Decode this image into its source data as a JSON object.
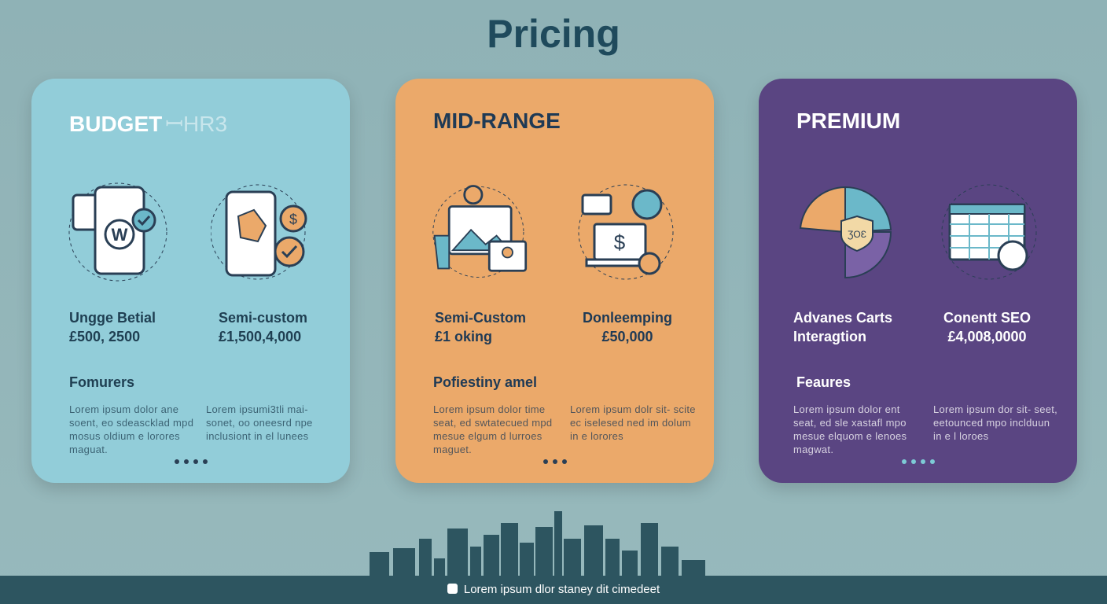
{
  "title": "Pricing",
  "colors": {
    "budget": "#92cdd9",
    "mid": "#eba96a",
    "premium": "#5a4582",
    "footer": "#2d5560"
  },
  "cards": [
    {
      "tier": "BUDGET",
      "tier_ghost": "ꟷHR3",
      "options": [
        {
          "name": "Ungge Betial",
          "price": "£500, 2500",
          "icon": "phone-wordpress-icon"
        },
        {
          "name": "Semi-custom",
          "price": "£1,500,4,000",
          "icon": "phone-dollar-gear-icon"
        }
      ],
      "features_title": "Fomurers",
      "lorem": [
        "Lorem ipsum dolor ane soent, eo sdeascklad mpd mosus oldium e lorores maguat.",
        "Lorem ipsumi3tli mai- sonet, oo oneesrd npe inclusiont in el lunees"
      ],
      "dots": 4
    },
    {
      "tier": "MID-RANGE",
      "options": [
        {
          "name": "Semi-Custom",
          "price": "£1 oking",
          "icon": "browser-gallery-icon"
        },
        {
          "name": "Donleemping",
          "price": "£50,000",
          "icon": "laptop-dollar-icon"
        }
      ],
      "features_title": "Pofiestiny amel",
      "lorem": [
        "Lorem ipsum dolor time seat, ed swtatecued mpd mesue elgum d lurroes maguet.",
        "Lorem ipsum dolr sit- scite ec iselesed ned im dolum in e lorores"
      ],
      "dots": 3
    },
    {
      "tier": "PREMIUM",
      "options": [
        {
          "name": "Advanes Carts Interagtion",
          "price": "",
          "icon": "pie-chart-shield-icon"
        },
        {
          "name": "Conentt SEO",
          "price": "£4,008,0000",
          "icon": "calendar-gear-icon"
        }
      ],
      "features_title": "Feaures",
      "lorem": [
        "Lorem ipsum dolor ent seat, ed sle xastafl mpo mesue elquom e lenoes magwat.",
        "Lorem ipsum dor sit- seet, eetounced mpo inclduun in e l loroes"
      ],
      "dots": 4
    }
  ],
  "footer": {
    "text": "Lorem ipsum dlor staney dit cimedeet",
    "icon": "square-icon"
  }
}
